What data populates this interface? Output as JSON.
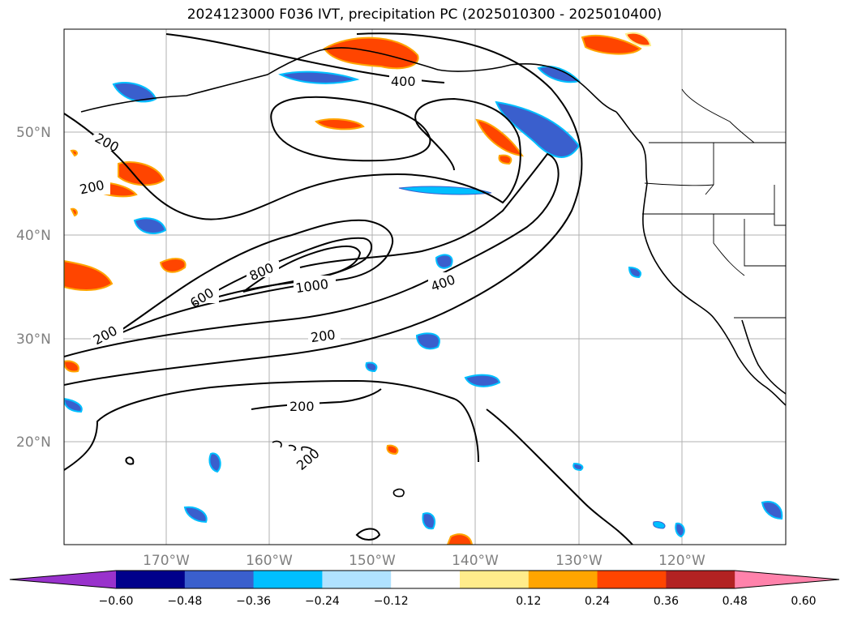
{
  "title": "2024123000 F036 IVT, precipitation PC (2025010300 - 2025010400)",
  "map": {
    "lat_labels": [
      "50°N",
      "40°N",
      "30°N",
      "20°N"
    ],
    "lon_labels": [
      "170°W",
      "160°W",
      "150°W",
      "140°W",
      "130°W",
      "120°W"
    ],
    "ivt_contour_labels": [
      "200",
      "200",
      "200",
      "200",
      "200",
      "200",
      "400",
      "400",
      "600",
      "800",
      "1000"
    ]
  },
  "colorbar": {
    "tick_labels": [
      "−0.60",
      "−0.48",
      "−0.36",
      "−0.24",
      "−0.12",
      "0.12",
      "0.24",
      "0.36",
      "0.48",
      "0.60"
    ],
    "colors": [
      "#9932cc",
      "#00008b",
      "#3a5fcd",
      "#00bfff",
      "#b0e2ff",
      "#ffffff",
      "#ffec8b",
      "#ffa500",
      "#ff4500",
      "#b22222",
      "#ff82ab"
    ]
  }
}
